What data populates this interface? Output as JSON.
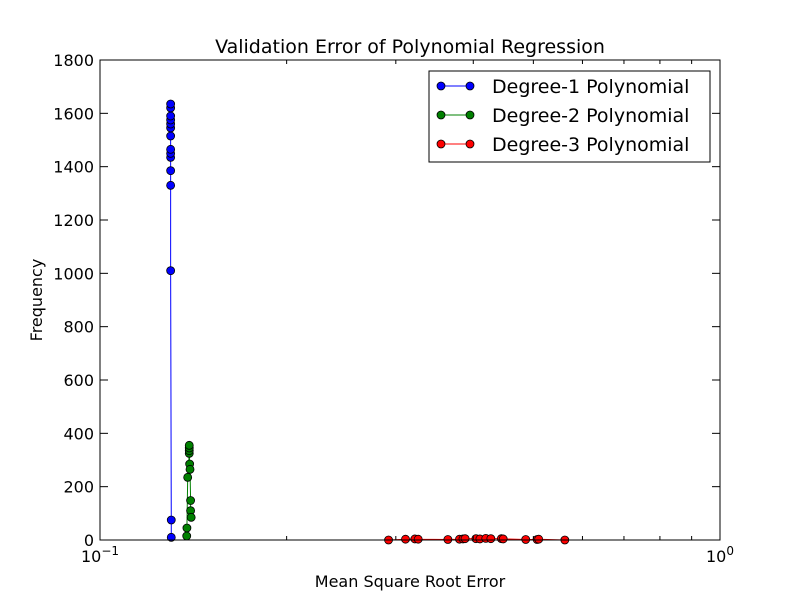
{
  "chart_data": {
    "type": "line",
    "title": "Validation Error of Polynomial Regression",
    "xlabel": "Mean Square Root Error",
    "ylabel": "Frequency",
    "xscale": "log",
    "xlim": [
      0.1,
      1.0
    ],
    "ylim": [
      0,
      1800
    ],
    "x_ticks": [
      {
        "value": 0.1,
        "base": "10",
        "exp": "−1"
      },
      {
        "value": 1.0,
        "base": "10",
        "exp": "0"
      }
    ],
    "y_ticks": [
      0,
      200,
      400,
      600,
      800,
      1000,
      1200,
      1400,
      1600,
      1800
    ],
    "grid": false,
    "legend_position": "top-right",
    "series": [
      {
        "name": "Degree-1 Polynomial",
        "color": "#0000ff",
        "points": [
          {
            "x": 0.1303,
            "y": 10
          },
          {
            "x": 0.1303,
            "y": 75
          },
          {
            "x": 0.13,
            "y": 1010
          },
          {
            "x": 0.13,
            "y": 1330
          },
          {
            "x": 0.13,
            "y": 1385
          },
          {
            "x": 0.13,
            "y": 1435
          },
          {
            "x": 0.13,
            "y": 1450
          },
          {
            "x": 0.13,
            "y": 1465
          },
          {
            "x": 0.13,
            "y": 1515
          },
          {
            "x": 0.13,
            "y": 1545
          },
          {
            "x": 0.13,
            "y": 1560
          },
          {
            "x": 0.13,
            "y": 1575
          },
          {
            "x": 0.13,
            "y": 1590
          },
          {
            "x": 0.13,
            "y": 1620
          },
          {
            "x": 0.13,
            "y": 1635
          }
        ]
      },
      {
        "name": "Degree-2 Polynomial",
        "color": "#008000",
        "points": [
          {
            "x": 0.138,
            "y": 15
          },
          {
            "x": 0.1381,
            "y": 45
          },
          {
            "x": 0.1385,
            "y": 235
          },
          {
            "x": 0.1393,
            "y": 325
          },
          {
            "x": 0.1393,
            "y": 335
          },
          {
            "x": 0.1393,
            "y": 345
          },
          {
            "x": 0.1393,
            "y": 355
          },
          {
            "x": 0.1395,
            "y": 285
          },
          {
            "x": 0.1397,
            "y": 265
          },
          {
            "x": 0.14,
            "y": 148
          },
          {
            "x": 0.14,
            "y": 110
          },
          {
            "x": 0.1403,
            "y": 85
          }
        ]
      },
      {
        "name": "Degree-3 Polynomial",
        "color": "#ff0000",
        "points": [
          {
            "x": 0.292,
            "y": 0
          },
          {
            "x": 0.311,
            "y": 3
          },
          {
            "x": 0.322,
            "y": 4
          },
          {
            "x": 0.326,
            "y": 3
          },
          {
            "x": 0.364,
            "y": 2
          },
          {
            "x": 0.38,
            "y": 3
          },
          {
            "x": 0.385,
            "y": 4
          },
          {
            "x": 0.388,
            "y": 5
          },
          {
            "x": 0.404,
            "y": 5
          },
          {
            "x": 0.41,
            "y": 4
          },
          {
            "x": 0.419,
            "y": 6
          },
          {
            "x": 0.427,
            "y": 5
          },
          {
            "x": 0.444,
            "y": 5
          },
          {
            "x": 0.447,
            "y": 4
          },
          {
            "x": 0.486,
            "y": 2
          },
          {
            "x": 0.507,
            "y": 2
          },
          {
            "x": 0.51,
            "y": 3
          },
          {
            "x": 0.562,
            "y": 0
          }
        ]
      }
    ]
  }
}
